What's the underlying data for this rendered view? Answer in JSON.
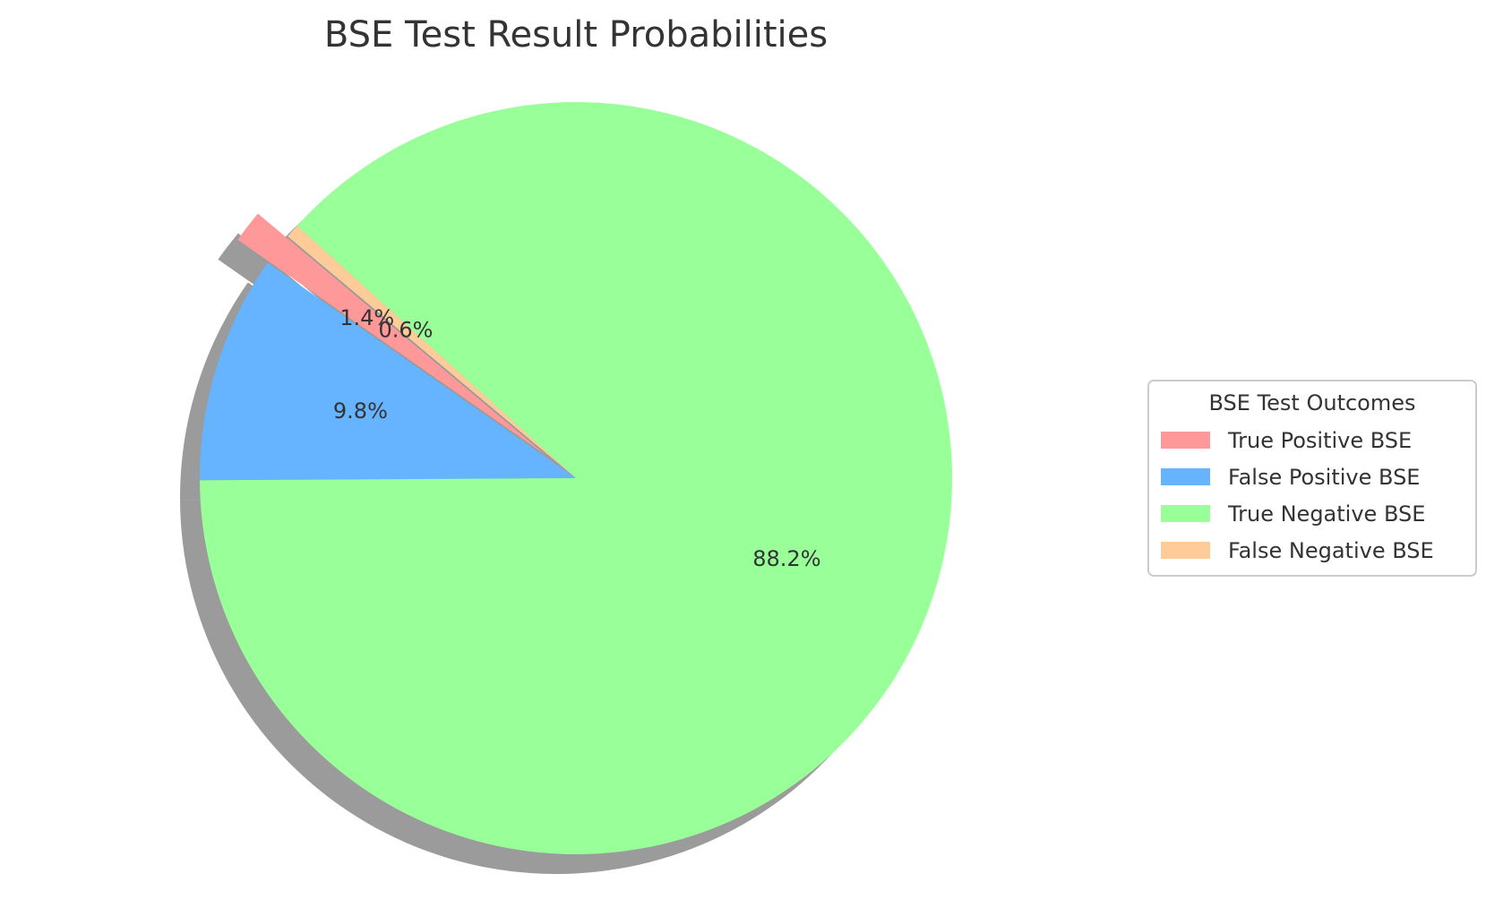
{
  "chart_data": {
    "type": "pie",
    "title": "BSE Test Result Probabilities",
    "categories": [
      "True Positive BSE",
      "False Positive BSE",
      "True Negative BSE",
      "False Negative BSE"
    ],
    "values": [
      1.4,
      9.8,
      88.2,
      0.6
    ],
    "value_labels": [
      "1.4%",
      "9.8%",
      "88.2%",
      "0.6%"
    ],
    "colors": [
      "#ff9999",
      "#66b3ff",
      "#99ff99",
      "#ffcc99"
    ],
    "exploded": [
      true,
      false,
      false,
      false
    ],
    "shadow": true,
    "start_angle_deg": 140,
    "legend": {
      "title": "BSE Test Outcomes",
      "placement": "center-right"
    }
  }
}
